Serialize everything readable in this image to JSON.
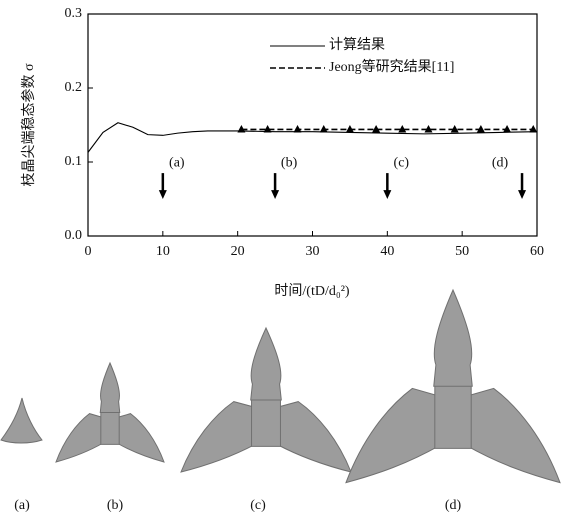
{
  "chart_data": {
    "type": "line",
    "xlabel": "时间/(tD/d₀²)",
    "ylabel": "枝晶尖端稳态参数 σ",
    "xlim": [
      0,
      60
    ],
    "ylim": [
      0,
      0.3
    ],
    "xticks": [
      0,
      10,
      20,
      30,
      40,
      50,
      60
    ],
    "yticks": [
      {
        "value": 0,
        "label": "0.0"
      },
      0.1,
      0.2,
      0.3
    ],
    "series": [
      {
        "name": "计算结果",
        "color": "#000000",
        "style": "solid",
        "marker": "none",
        "x": [
          0,
          2,
          4,
          6,
          8,
          10,
          12,
          14,
          16,
          20,
          25,
          30,
          35,
          40,
          45,
          50,
          55,
          60
        ],
        "values": [
          0.113,
          0.14,
          0.153,
          0.147,
          0.137,
          0.136,
          0.139,
          0.141,
          0.142,
          0.142,
          0.141,
          0.141,
          0.14,
          0.139,
          0.138,
          0.139,
          0.14,
          0.141
        ]
      },
      {
        "name": "Jeong等研究结果[11]",
        "color": "#000000",
        "style": "dashed",
        "marker": "triangle",
        "x": [
          20.5,
          24,
          28,
          31.5,
          35,
          38.5,
          42,
          45.5,
          49,
          52.5,
          56,
          59.5
        ],
        "values": [
          0.144,
          0.144,
          0.144,
          0.144,
          0.144,
          0.144,
          0.144,
          0.144,
          0.144,
          0.144,
          0.144,
          0.144
        ]
      }
    ],
    "annotations": [
      {
        "text": "(a)",
        "x": 10
      },
      {
        "text": "(b)",
        "x": 25
      },
      {
        "text": "(c)",
        "x": 40
      },
      {
        "text": "(d)",
        "x": 58
      }
    ],
    "panels": [
      "(a)",
      "(b)",
      "(c)",
      "(d)"
    ]
  }
}
